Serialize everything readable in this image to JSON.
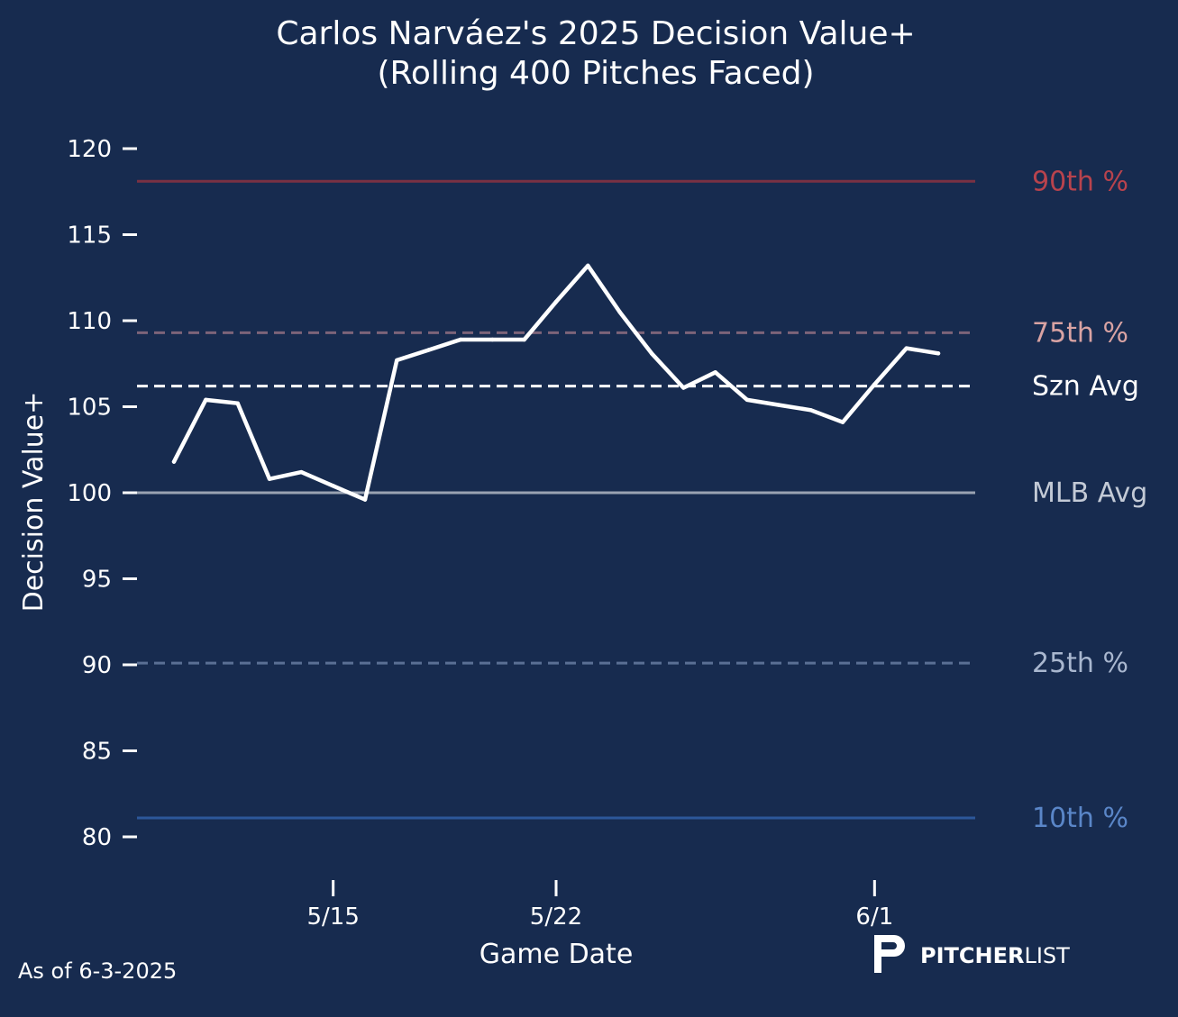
{
  "chart_data": {
    "type": "line",
    "title_line1": "Carlos Narváez's 2025 Decision Value+",
    "title_line2": "(Rolling 400 Pitches Faced)",
    "xlabel": "Game Date",
    "ylabel": "Decision Value+",
    "ylim": [
      78,
      121
    ],
    "yticks": [
      80,
      85,
      90,
      95,
      100,
      105,
      110,
      115,
      120
    ],
    "xlim": [
      8.9,
      35.4
    ],
    "xticks": [
      {
        "x": 15,
        "label": "5/15"
      },
      {
        "x": 22,
        "label": "5/22"
      },
      {
        "x": 32,
        "label": "6/1"
      }
    ],
    "series": [
      {
        "name": "Decision Value+ (rolling 400)",
        "color": "#ffffff",
        "x": [
          10,
          11,
          12,
          13,
          14,
          15,
          16,
          17,
          18,
          19,
          20,
          21,
          22,
          23,
          24,
          25,
          26,
          27,
          28,
          29,
          30,
          31,
          32,
          33,
          34
        ],
        "values": [
          101.8,
          105.4,
          105.2,
          100.8,
          101.2,
          100.4,
          99.6,
          107.7,
          108.3,
          108.9,
          108.9,
          108.9,
          111.1,
          113.2,
          110.5,
          108.1,
          106.1,
          107.0,
          105.4,
          105.1,
          104.8,
          104.1,
          106.3,
          108.4,
          108.1
        ]
      }
    ],
    "reference_lines": [
      {
        "label": "90th %",
        "value": 118.1,
        "color": "#7a3143",
        "label_color": "#b8434d",
        "style": "solid"
      },
      {
        "label": "75th %",
        "value": 109.3,
        "color": "#7d6479",
        "label_color": "#d9a3a3",
        "style": "dashed"
      },
      {
        "label": "Szn Avg",
        "value": 106.2,
        "color": "#ffffff",
        "label_color": "#ffffff",
        "style": "dashed"
      },
      {
        "label": "MLB Avg",
        "value": 100.0,
        "color": "#9aa3b2",
        "label_color": "#c3cad6",
        "style": "solid"
      },
      {
        "label": "25th %",
        "value": 90.1,
        "color": "#5a6f94",
        "label_color": "#a9b7cf",
        "style": "dashed"
      },
      {
        "label": "10th %",
        "value": 81.1,
        "color": "#2c5799",
        "label_color": "#5a86c8",
        "style": "solid"
      }
    ]
  },
  "footer": {
    "as_of": "As of 6-3-2025",
    "logo_bold": "PITCHER",
    "logo_light": "LIST"
  },
  "colors": {
    "background": "#172b4f",
    "text": "#ffffff"
  }
}
